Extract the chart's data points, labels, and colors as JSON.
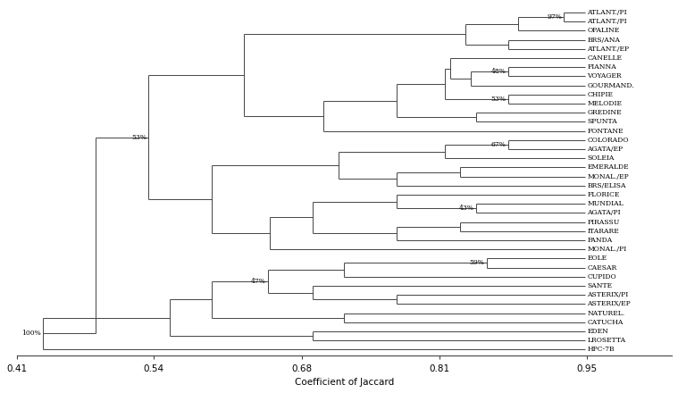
{
  "taxa": [
    "ATLANT./PI",
    "ATLANT./PI",
    "OPALINE",
    "BRS/ANA",
    "ATLANT./EP",
    "CANELLE",
    "FIANNA",
    "VOYAGER",
    "GOURMAND.",
    "CHIPIE",
    "MELODIE",
    "GREDINE",
    "SPUNTA",
    "FONTANE",
    "COLORADO",
    "AGATA/EP",
    "SOLEIA",
    "EMERALDE",
    "MONAL./EP",
    "BRS/ELISA",
    "FLORICE",
    "MUNDIAL",
    "AGATA/PI",
    "PIRASSU",
    "ITARARE",
    "PANDA",
    "MONAL./PI",
    "EOLE",
    "CAESAR",
    "CUPIDO",
    "SANTE",
    "ASTERIX/PI",
    "ASTERIX/EP",
    "NATUREL.",
    "CATUCHA",
    "EDEN",
    "LROSETTA",
    "HPC-7B"
  ],
  "x_min": 0.41,
  "x_max": 0.95,
  "x_ticks": [
    0.41,
    0.54,
    0.68,
    0.81,
    0.95
  ],
  "x_label": "Coefficient of Jaccard",
  "line_color": "#444444",
  "bg_color": "#ffffff",
  "fontsize_labels": 5.5,
  "fontsize_axis": 7.5,
  "fontsize_bootstrap": 5.5
}
